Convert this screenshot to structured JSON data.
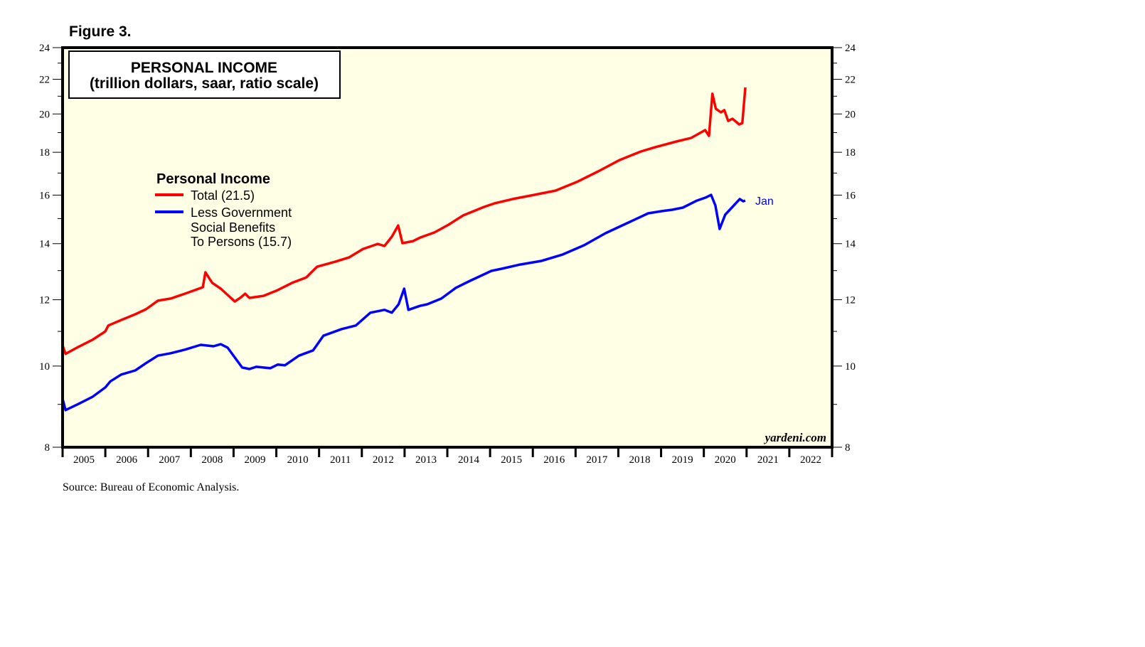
{
  "figure_label": "Figure 3.",
  "source": "Source: Bureau of Economic Analysis.",
  "watermark": "yardeni.com",
  "colors": {
    "total": "#ff0000",
    "less_gov": "#0000ff",
    "plot_bg": "#ffffe6",
    "frame": "#000000"
  },
  "chart_data": {
    "type": "line",
    "title": "PERSONAL INCOME",
    "subtitle": "(trillion dollars, saar, ratio scale)",
    "legend_title": "Personal Income",
    "legend_position": "upper-left",
    "y_scale": "log",
    "ylim": [
      8,
      24
    ],
    "yticks": [
      8,
      10,
      12,
      14,
      16,
      18,
      20,
      22,
      24
    ],
    "yminor": [
      9,
      11,
      13,
      15,
      17,
      19,
      21,
      23
    ],
    "xlim": [
      2005,
      2023
    ],
    "xticks": [
      "2005",
      "2006",
      "2007",
      "2008",
      "2009",
      "2010",
      "2011",
      "2012",
      "2013",
      "2014",
      "2015",
      "2016",
      "2017",
      "2018",
      "2019",
      "2020",
      "2021",
      "2022"
    ],
    "end_annotation": "Jan",
    "series": [
      {
        "name": "Total (21.5)",
        "color": "#ff0000",
        "x": [
          2005.0,
          2005.07,
          2005.37,
          2005.7,
          2006.0,
          2006.07,
          2006.37,
          2006.7,
          2006.95,
          2007.23,
          2007.53,
          2007.86,
          2008.28,
          2008.34,
          2008.5,
          2008.7,
          2009.03,
          2009.17,
          2009.27,
          2009.37,
          2009.7,
          2010.03,
          2010.37,
          2010.7,
          2010.95,
          2011.37,
          2011.7,
          2012.03,
          2012.37,
          2012.53,
          2012.7,
          2012.85,
          2012.95,
          2013.2,
          2013.37,
          2013.7,
          2014.03,
          2014.37,
          2014.86,
          2015.1,
          2015.53,
          2016.03,
          2016.53,
          2017.03,
          2017.53,
          2018.03,
          2018.53,
          2018.86,
          2019.36,
          2019.7,
          2020.03,
          2020.12,
          2020.2,
          2020.28,
          2020.4,
          2020.48,
          2020.57,
          2020.67,
          2020.83,
          2020.9,
          2020.97
        ],
        "y": [
          10.58,
          10.34,
          10.54,
          10.75,
          11.0,
          11.18,
          11.35,
          11.53,
          11.69,
          11.97,
          12.04,
          12.2,
          12.42,
          12.94,
          12.57,
          12.37,
          11.94,
          12.08,
          12.2,
          12.06,
          12.13,
          12.32,
          12.57,
          12.76,
          13.14,
          13.32,
          13.48,
          13.8,
          13.99,
          13.91,
          14.27,
          14.72,
          14.02,
          14.1,
          14.24,
          14.44,
          14.75,
          15.13,
          15.49,
          15.64,
          15.83,
          16.01,
          16.2,
          16.59,
          17.08,
          17.62,
          18.04,
          18.25,
          18.54,
          18.72,
          19.13,
          18.83,
          21.14,
          20.29,
          20.09,
          20.21,
          19.62,
          19.74,
          19.43,
          19.51,
          21.51
        ]
      },
      {
        "name": "Less Government Social Benefits To Persons (15.7)",
        "color": "#0000ff",
        "x": [
          2005.0,
          2005.07,
          2005.37,
          2005.7,
          2006.0,
          2006.12,
          2006.37,
          2006.7,
          2006.95,
          2007.23,
          2007.53,
          2007.86,
          2008.23,
          2008.53,
          2008.7,
          2008.86,
          2009.2,
          2009.37,
          2009.53,
          2009.86,
          2010.03,
          2010.2,
          2010.53,
          2010.86,
          2011.1,
          2011.53,
          2011.86,
          2012.2,
          2012.53,
          2012.7,
          2012.86,
          2012.99,
          2013.09,
          2013.36,
          2013.53,
          2013.86,
          2014.2,
          2014.53,
          2015.03,
          2015.28,
          2015.7,
          2016.2,
          2016.7,
          2017.2,
          2017.7,
          2018.2,
          2018.7,
          2019.01,
          2019.26,
          2019.51,
          2019.84,
          2020.04,
          2020.17,
          2020.27,
          2020.37,
          2020.5,
          2020.84,
          2020.92,
          2020.97
        ],
        "y": [
          9.14,
          8.86,
          9.01,
          9.19,
          9.43,
          9.59,
          9.77,
          9.88,
          10.08,
          10.29,
          10.36,
          10.46,
          10.6,
          10.56,
          10.62,
          10.52,
          9.96,
          9.92,
          9.98,
          9.94,
          10.04,
          10.02,
          10.29,
          10.44,
          10.87,
          11.07,
          11.18,
          11.58,
          11.67,
          11.58,
          11.85,
          12.37,
          11.67,
          11.8,
          11.85,
          12.04,
          12.4,
          12.64,
          12.99,
          13.07,
          13.22,
          13.35,
          13.59,
          13.94,
          14.41,
          14.81,
          15.22,
          15.31,
          15.37,
          15.46,
          15.76,
          15.89,
          16.01,
          15.55,
          14.58,
          15.16,
          15.83,
          15.73,
          15.76
        ]
      }
    ],
    "legend_lines": {
      "total": "Total (21.5)",
      "less_gov": [
        "Less Government",
        "Social Benefits",
        "To Persons (15.7)"
      ]
    }
  }
}
